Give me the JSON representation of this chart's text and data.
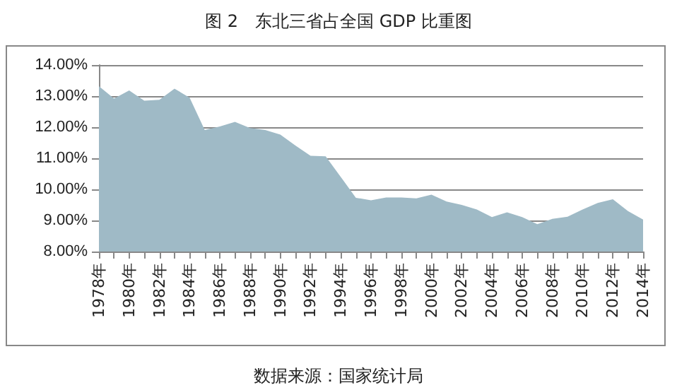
{
  "chart_data": {
    "type": "area",
    "title": "图 2　东北三省占全国 GDP 比重图",
    "categories": [
      "1978年",
      null,
      "1980年",
      null,
      "1982年",
      null,
      "1984年",
      null,
      "1986年",
      null,
      "1988年",
      null,
      "1990年",
      null,
      "1992年",
      null,
      "1994年",
      null,
      "1996年",
      null,
      "1998年",
      null,
      "2000年",
      null,
      "2002年",
      null,
      "2004年",
      null,
      "2006年",
      null,
      "2008年",
      null,
      "2010年",
      null,
      "2012年",
      null,
      "2014年"
    ],
    "series": [
      {
        "color": "#9fbac6",
        "values": [
          13.32,
          12.92,
          13.18,
          12.85,
          12.88,
          13.24,
          12.95,
          11.91,
          12.02,
          12.17,
          11.97,
          11.91,
          11.76,
          11.41,
          11.08,
          11.06,
          10.4,
          9.73,
          9.65,
          9.74,
          9.74,
          9.71,
          9.83,
          9.61,
          9.5,
          9.35,
          9.11,
          9.26,
          9.11,
          8.88,
          9.05,
          9.12,
          9.35,
          9.56,
          9.68,
          9.3,
          9.03
        ]
      }
    ],
    "ylim": [
      8,
      14
    ],
    "yticks": [
      {
        "value": 8,
        "label": "8.00%"
      },
      {
        "value": 9,
        "label": "9.00%"
      },
      {
        "value": 10,
        "label": "10.00%"
      },
      {
        "value": 11,
        "label": "11.00%"
      },
      {
        "value": 12,
        "label": "12.00%"
      },
      {
        "value": 13,
        "label": "13.00%"
      },
      {
        "value": 14,
        "label": "14.00%"
      }
    ],
    "grid": "y",
    "annotations": [
      "数据来源：国家统计局"
    ]
  }
}
